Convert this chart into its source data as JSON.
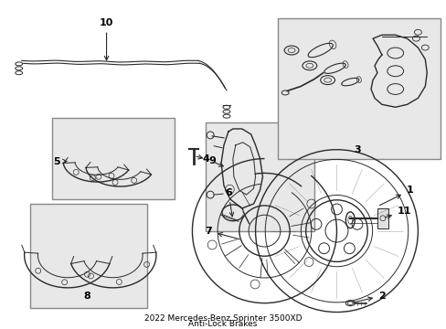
{
  "background_color": "#ffffff",
  "line_color": "#2a2a2a",
  "label_color": "#000000",
  "fig_width": 4.89,
  "fig_height": 3.6,
  "dpi": 100,
  "box_color": "#e8e8e8",
  "box_edge": "#888888"
}
